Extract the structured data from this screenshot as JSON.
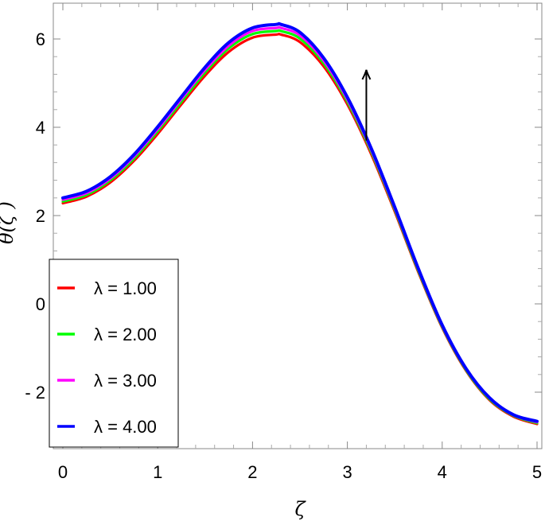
{
  "chart_data": {
    "type": "line",
    "xlabel": "ζ",
    "ylabel": "θ(ζ )",
    "xlim": [
      -0.1,
      5.1
    ],
    "ylim": [
      -3.2,
      6.9
    ],
    "xticks": [
      {
        "value": 0,
        "label": "0"
      },
      {
        "value": 1,
        "label": "1"
      },
      {
        "value": 2,
        "label": "2"
      },
      {
        "value": 3,
        "label": "3"
      },
      {
        "value": 4,
        "label": "4"
      },
      {
        "value": 5,
        "label": "5"
      }
    ],
    "yticks": [
      {
        "value": -2,
        "label": "- 2"
      },
      {
        "value": 0,
        "label": "0"
      },
      {
        "value": 2,
        "label": "2"
      },
      {
        "value": 4,
        "label": "4"
      },
      {
        "value": 6,
        "label": "6"
      }
    ],
    "x": [
      0,
      0.25,
      0.5,
      0.75,
      1.0,
      1.25,
      1.5,
      1.75,
      2.0,
      2.25,
      2.3,
      2.5,
      2.75,
      3.0,
      3.25,
      3.5,
      3.75,
      4.0,
      4.25,
      4.5,
      4.75,
      5.0
    ],
    "series": [
      {
        "name": "λ = 1.00",
        "color": "#ff0000",
        "values": [
          2.28,
          2.43,
          2.75,
          3.24,
          3.85,
          4.52,
          5.17,
          5.71,
          6.03,
          6.1,
          6.1,
          5.93,
          5.38,
          4.52,
          3.4,
          2.09,
          0.71,
          -0.54,
          -1.51,
          -2.18,
          -2.55,
          -2.72
        ]
      },
      {
        "name": "λ = 2.00",
        "color": "#00ff00",
        "values": [
          2.32,
          2.47,
          2.8,
          3.29,
          3.91,
          4.58,
          5.24,
          5.79,
          6.11,
          6.18,
          6.18,
          6.01,
          5.45,
          4.58,
          3.45,
          2.13,
          0.74,
          -0.52,
          -1.49,
          -2.16,
          -2.53,
          -2.7
        ]
      },
      {
        "name": "λ = 3.00",
        "color": "#ff00ff",
        "values": [
          2.36,
          2.51,
          2.84,
          3.34,
          3.96,
          4.64,
          5.3,
          5.85,
          6.18,
          6.25,
          6.25,
          6.08,
          5.51,
          4.63,
          3.49,
          2.16,
          0.77,
          -0.5,
          -1.47,
          -2.14,
          -2.52,
          -2.68
        ]
      },
      {
        "name": "λ = 4.00",
        "color": "#0000ff",
        "values": [
          2.4,
          2.55,
          2.88,
          3.38,
          4.01,
          4.69,
          5.36,
          5.92,
          6.25,
          6.33,
          6.33,
          6.15,
          5.57,
          4.68,
          3.53,
          2.19,
          0.79,
          -0.48,
          -1.46,
          -2.13,
          -2.51,
          -2.66
        ]
      }
    ],
    "annotation": {
      "type": "arrow",
      "x": 3.2,
      "y_from": 3.7,
      "y_to": 5.3
    },
    "legend": {
      "placement": "bottom-left"
    },
    "grid": false
  }
}
